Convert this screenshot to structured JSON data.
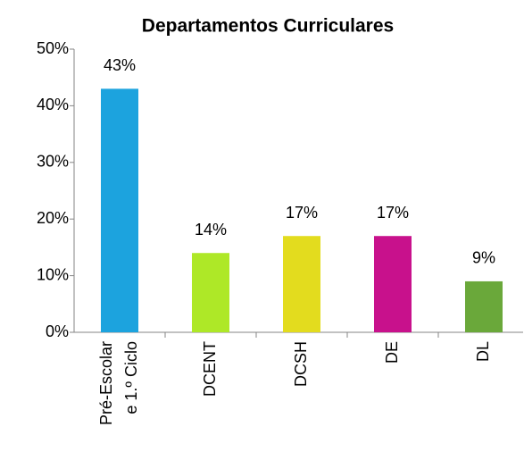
{
  "chart_data": {
    "type": "bar",
    "title": "Departamentos Curriculares",
    "categories": [
      "Pré-Escolar\ne 1.º Ciclo",
      "DCENT",
      "DCSH",
      "DE",
      "DL"
    ],
    "values": [
      43,
      14,
      17,
      17,
      9
    ],
    "value_labels": [
      "43%",
      "14%",
      "17%",
      "17%",
      "9%"
    ],
    "colors": [
      "#1ca3de",
      "#aee827",
      "#e3dc1e",
      "#c8118c",
      "#6aa83a"
    ],
    "ylim": [
      0,
      50
    ],
    "yticks": [
      {
        "value": 0,
        "label": "0%"
      },
      {
        "value": 10,
        "label": "10%"
      },
      {
        "value": 20,
        "label": "20%"
      },
      {
        "value": 30,
        "label": "30%"
      },
      {
        "value": 40,
        "label": "40%"
      },
      {
        "value": 50,
        "label": "50%"
      }
    ]
  }
}
